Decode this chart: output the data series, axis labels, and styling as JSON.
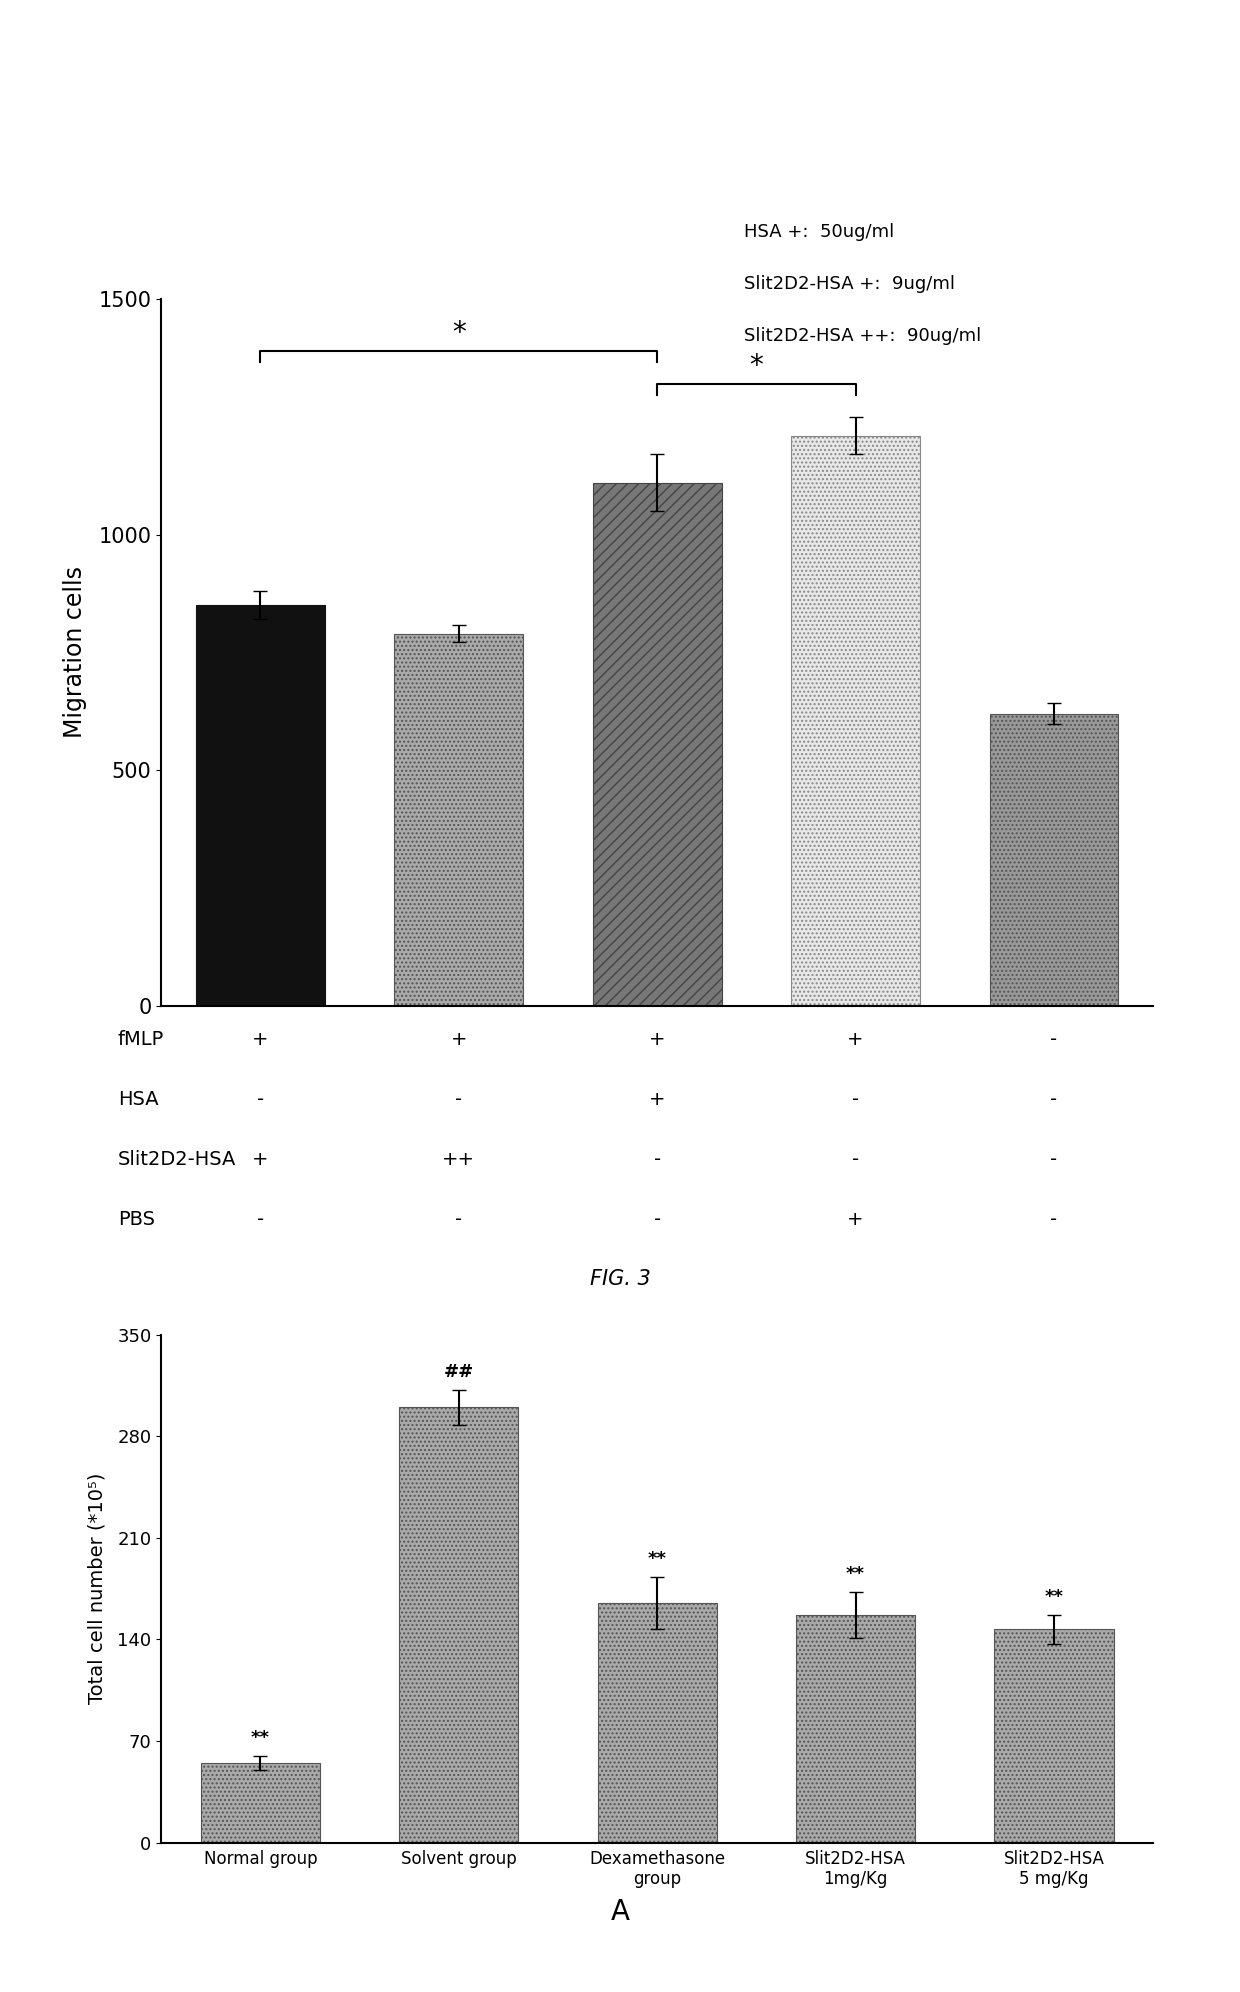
{
  "fig1": {
    "bars": [
      850,
      790,
      1110,
      1210,
      620
    ],
    "errors": [
      30,
      18,
      60,
      40,
      22
    ],
    "ylim": [
      0,
      1500
    ],
    "yticks": [
      0,
      500,
      1000,
      1500
    ],
    "ylabel": "Migration cells",
    "legend_text": [
      "HSA +:  50ug/ml",
      "Slit2D2-HSA +:  9ug/ml",
      "Slit2D2-HSA ++:  90ug/ml"
    ],
    "table_rows": [
      "fMLP",
      "HSA",
      "Slit2D2-HSA",
      "PBS"
    ],
    "table_data": [
      [
        "+",
        "+",
        "+",
        "+",
        "-"
      ],
      [
        "-",
        "-",
        "+",
        "-",
        "-"
      ],
      [
        "+",
        "++",
        "-",
        "-",
        "-"
      ],
      [
        "-",
        "-",
        "-",
        "+",
        "-"
      ]
    ],
    "fig_label": "FIG. 3"
  },
  "fig2": {
    "bars": [
      55,
      300,
      165,
      157,
      147
    ],
    "errors": [
      5,
      12,
      18,
      16,
      10
    ],
    "ylim": [
      0,
      350
    ],
    "yticks": [
      0,
      70,
      140,
      210,
      280,
      350
    ],
    "ylabel": "Total cell number (*10⁵)",
    "categories": [
      "Normal group",
      "Solvent group",
      "Dexamethasone\ngroup",
      "Slit2D2-HSA\n1mg/Kg",
      "Slit2D2-HSA\n5 mg/Kg"
    ],
    "annotations": [
      "**",
      "##",
      "**",
      "**",
      "**"
    ],
    "fig_label": "A"
  },
  "background_color": "#ffffff"
}
